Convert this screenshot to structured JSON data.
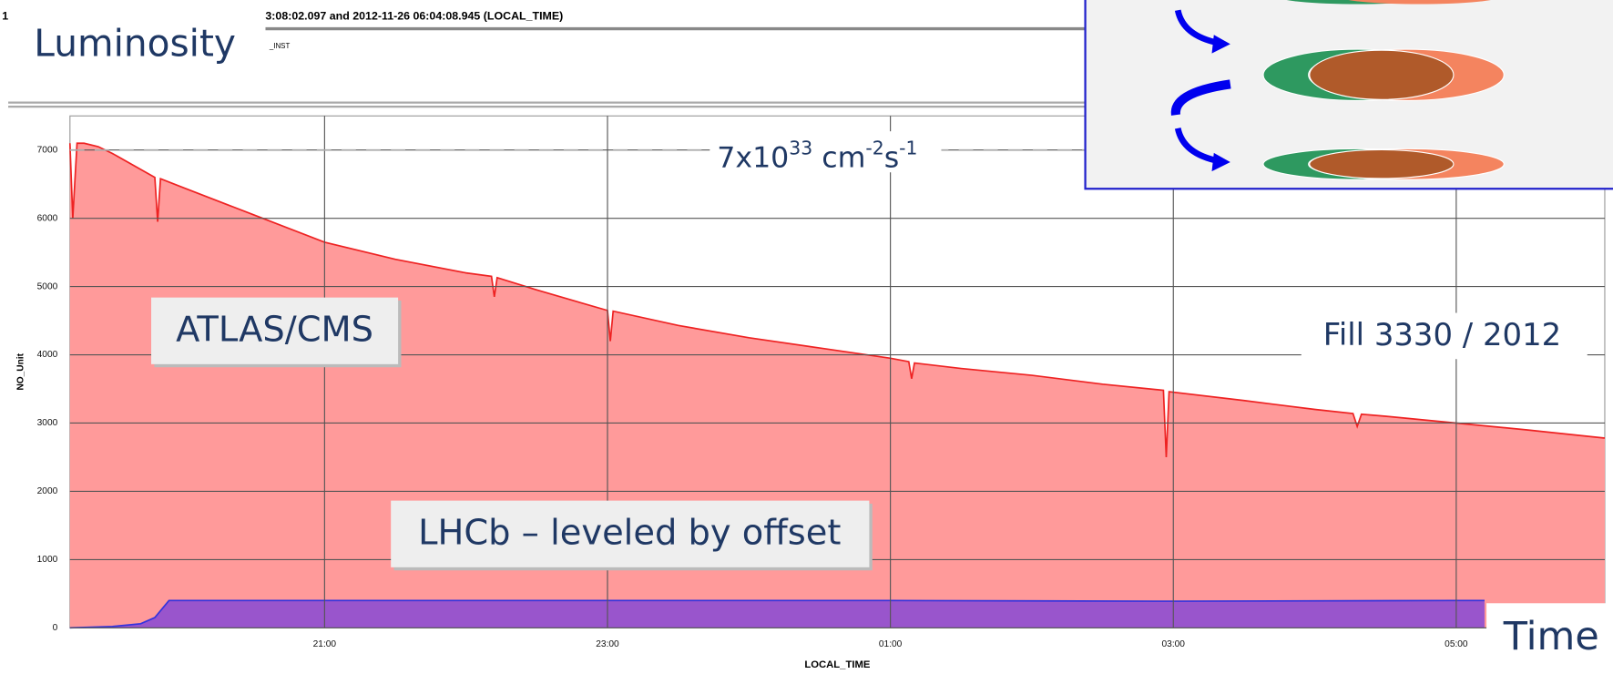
{
  "header": {
    "title": "Luminosity",
    "query_text": "3:08:02.097 and 2012-11-26 06:04:08.945 (LOCAL_TIME)",
    "variable_text": "_INST",
    "left_text": "1"
  },
  "chart_data": {
    "type": "area",
    "xlabel": "LOCAL_TIME",
    "ylabel": "NO_Unit",
    "xlim": [
      19.2,
      30.05
    ],
    "ylim": [
      0,
      7500
    ],
    "xticks": [
      {
        "value": 21,
        "label": "21:00"
      },
      {
        "value": 23,
        "label": "23:00"
      },
      {
        "value": 25,
        "label": "01:00"
      },
      {
        "value": 27,
        "label": "03:00"
      },
      {
        "value": 29,
        "label": "05:00"
      }
    ],
    "yticks": [
      0,
      1000,
      2000,
      3000,
      4000,
      5000,
      6000,
      7000
    ],
    "grid": true,
    "reference_line": 7000,
    "series": [
      {
        "name": "ATLAS/CMS",
        "color": "#ff9a9a",
        "line_color": "#ee2222",
        "x": [
          19.2,
          19.22,
          19.25,
          19.3,
          19.4,
          19.5,
          19.8,
          19.82,
          19.84,
          20,
          20.5,
          21,
          21.5,
          22,
          22.18,
          22.2,
          22.22,
          22.5,
          23,
          23.02,
          23.04,
          23.5,
          24,
          24.5,
          25,
          25.13,
          25.15,
          25.17,
          25.5,
          26,
          26.5,
          26.93,
          26.95,
          26.97,
          27.5,
          28,
          28.27,
          28.3,
          28.33,
          28.5,
          29,
          29.5,
          30.05
        ],
        "values": [
          7100,
          6000,
          7100,
          7100,
          7050,
          6950,
          6600,
          5950,
          6580,
          6450,
          6050,
          5650,
          5400,
          5200,
          5150,
          4850,
          5130,
          4950,
          4650,
          4200,
          4640,
          4430,
          4250,
          4100,
          3950,
          3900,
          3650,
          3880,
          3800,
          3700,
          3570,
          3480,
          2500,
          3460,
          3330,
          3200,
          3140,
          2950,
          3130,
          3100,
          3000,
          2900,
          2780
        ]
      },
      {
        "name": "LHCb – leveled  by offset",
        "color": "#9955cc",
        "line_color": "#3333dd",
        "x": [
          19.2,
          19.5,
          19.7,
          19.8,
          19.9,
          21,
          23,
          25,
          27,
          29,
          29.2
        ],
        "values": [
          0,
          20,
          60,
          150,
          400,
          400,
          400,
          400,
          390,
          400,
          400
        ]
      }
    ],
    "annotations": {
      "peak_base": "7x10",
      "peak_exp": "33",
      "peak_unit1": " cm",
      "peak_unit1_exp": "-2",
      "peak_unit2": "s",
      "peak_unit2_exp": "-1",
      "fill": "Fill 3330 / 2012",
      "time": "Time"
    }
  }
}
